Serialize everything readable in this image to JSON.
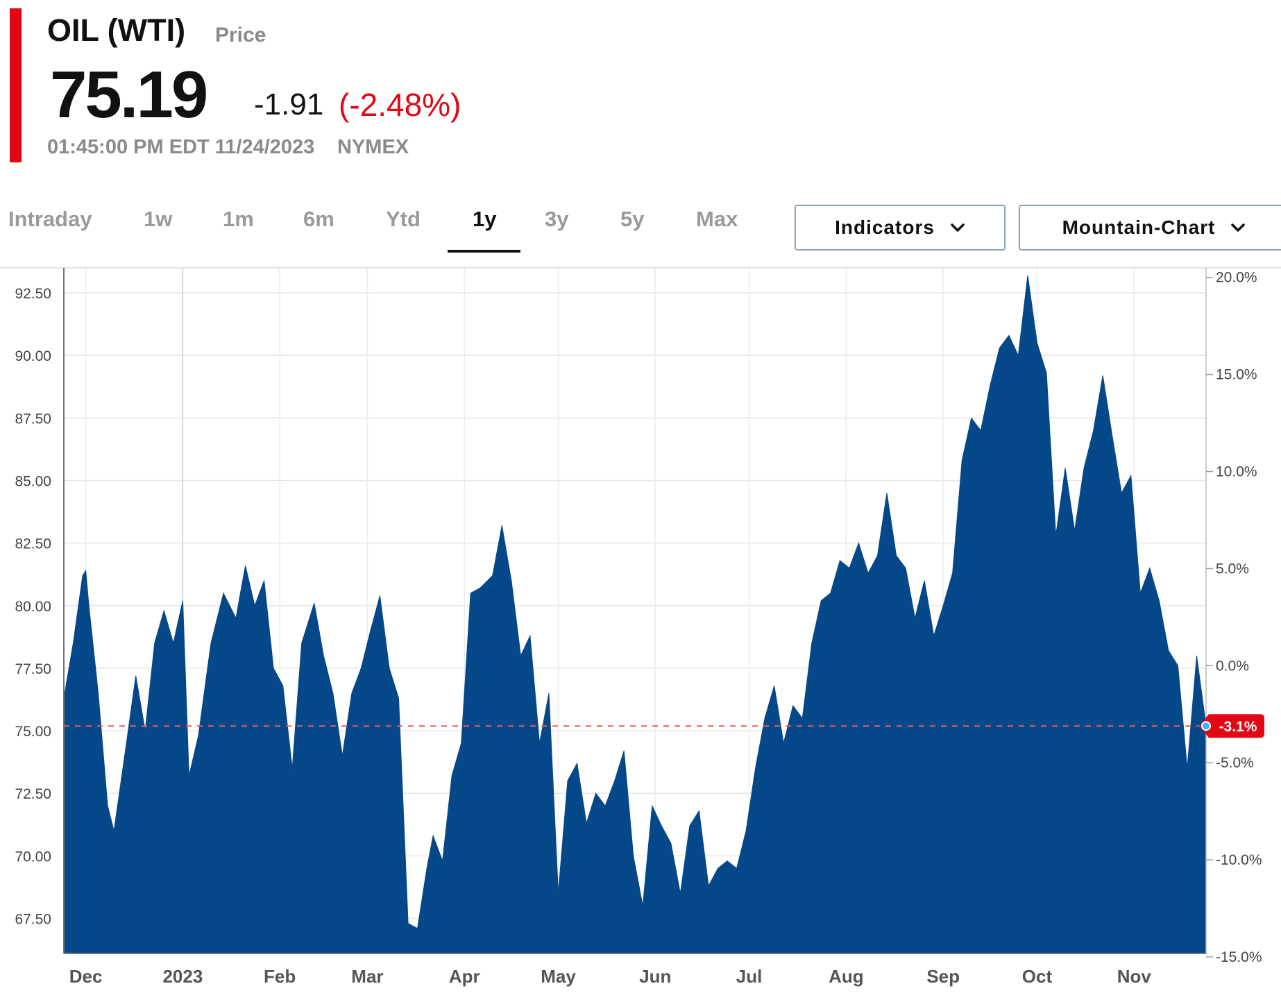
{
  "quote": {
    "title": "OIL (WTI)",
    "subtitle": "Price",
    "price": "75.19",
    "change": "-1.91",
    "change_pct": "(-2.48%)",
    "timestamp": "01:45:00 PM EDT 11/24/2023",
    "exchange": "NYMEX"
  },
  "tabs": [
    {
      "label": "Intraday",
      "active": false
    },
    {
      "label": "1w",
      "active": false
    },
    {
      "label": "1m",
      "active": false
    },
    {
      "label": "6m",
      "active": false
    },
    {
      "label": "Ytd",
      "active": false
    },
    {
      "label": "1y",
      "active": true
    },
    {
      "label": "3y",
      "active": false
    },
    {
      "label": "5y",
      "active": false
    },
    {
      "label": "Max",
      "active": false
    }
  ],
  "dropdowns": {
    "indicators_label": "Indicators",
    "chart_type_label": "Mountain-Chart",
    "chevron_icon": "chevron-down-icon"
  },
  "colors": {
    "accent": "#e30613",
    "area_fill": "#054889",
    "negative": "#e30613",
    "reference_line": "#e85c5c"
  },
  "chart_data": {
    "type": "area",
    "title": "",
    "xlabel": "",
    "ylabel": "",
    "ylim": [
      66.1,
      93.5
    ],
    "y_ticks": [
      "67.50",
      "70.00",
      "72.50",
      "75.00",
      "77.50",
      "80.00",
      "82.50",
      "85.00",
      "87.50",
      "90.00",
      "92.50"
    ],
    "y_tick_values": [
      67.5,
      70,
      72.5,
      75,
      77.5,
      80,
      82.5,
      85,
      87.5,
      90,
      92.5
    ],
    "y2_ticks": [
      "20.0%",
      "15.0%",
      "10.0%",
      "5.0%",
      "0.0%",
      "-5.0%",
      "-10.0%",
      "-15.0%"
    ],
    "y2_tick_values": [
      20,
      15,
      10,
      5,
      0,
      -5,
      -10,
      -15
    ],
    "y2_baseline": 77.6,
    "x_ticks": [
      "Dec",
      "2023",
      "Feb",
      "Mar",
      "Apr",
      "May",
      "Jun",
      "Jul",
      "Aug",
      "Sep",
      "Oct",
      "Nov"
    ],
    "x_tick_dates": [
      "2022-12-01",
      "2023-01-01",
      "2023-02-01",
      "2023-03-01",
      "2023-04-01",
      "2023-05-01",
      "2023-06-01",
      "2023-07-01",
      "2023-08-01",
      "2023-09-01",
      "2023-10-01",
      "2023-11-01"
    ],
    "x_range": [
      "2022-11-24",
      "2023-11-24"
    ],
    "reference_value": 75.19,
    "current_badge": "-3.1%",
    "grid": true,
    "series": [
      {
        "x": [
          "2022-11-24",
          "2022-11-27",
          "2022-11-30",
          "2022-12-01",
          "2022-12-02",
          "2022-12-05",
          "2022-12-08",
          "2022-12-10",
          "2022-12-14",
          "2022-12-17",
          "2022-12-20",
          "2022-12-23",
          "2022-12-26",
          "2022-12-29",
          "2023-01-01",
          "2023-01-03",
          "2023-01-06",
          "2023-01-10",
          "2023-01-14",
          "2023-01-18",
          "2023-01-21",
          "2023-01-24",
          "2023-01-27",
          "2023-01-30",
          "2023-02-02",
          "2023-02-05",
          "2023-02-08",
          "2023-02-12",
          "2023-02-15",
          "2023-02-18",
          "2023-02-21",
          "2023-02-24",
          "2023-02-27",
          "2023-03-02",
          "2023-03-05",
          "2023-03-08",
          "2023-03-11",
          "2023-03-14",
          "2023-03-17",
          "2023-03-20",
          "2023-03-22",
          "2023-03-25",
          "2023-03-28",
          "2023-03-31",
          "2023-04-03",
          "2023-04-06",
          "2023-04-10",
          "2023-04-13",
          "2023-04-16",
          "2023-04-19",
          "2023-04-22",
          "2023-04-25",
          "2023-04-28",
          "2023-05-01",
          "2023-05-04",
          "2023-05-07",
          "2023-05-10",
          "2023-05-13",
          "2023-05-16",
          "2023-05-19",
          "2023-05-22",
          "2023-05-25",
          "2023-05-28",
          "2023-05-31",
          "2023-06-03",
          "2023-06-06",
          "2023-06-09",
          "2023-06-12",
          "2023-06-15",
          "2023-06-18",
          "2023-06-21",
          "2023-06-24",
          "2023-06-27",
          "2023-06-30",
          "2023-07-03",
          "2023-07-06",
          "2023-07-09",
          "2023-07-12",
          "2023-07-15",
          "2023-07-18",
          "2023-07-21",
          "2023-07-24",
          "2023-07-27",
          "2023-07-30",
          "2023-08-02",
          "2023-08-05",
          "2023-08-08",
          "2023-08-11",
          "2023-08-14",
          "2023-08-17",
          "2023-08-20",
          "2023-08-23",
          "2023-08-26",
          "2023-08-29",
          "2023-09-01",
          "2023-09-04",
          "2023-09-07",
          "2023-09-10",
          "2023-09-13",
          "2023-09-16",
          "2023-09-19",
          "2023-09-22",
          "2023-09-25",
          "2023-09-28",
          "2023-10-01",
          "2023-10-04",
          "2023-10-07",
          "2023-10-10",
          "2023-10-13",
          "2023-10-16",
          "2023-10-19",
          "2023-10-22",
          "2023-10-25",
          "2023-10-28",
          "2023-10-31",
          "2023-11-03",
          "2023-11-06",
          "2023-11-09",
          "2023-11-12",
          "2023-11-15",
          "2023-11-18",
          "2023-11-21",
          "2023-11-24"
        ],
        "values": [
          76.3,
          78.5,
          81.2,
          81.4,
          80.0,
          76.5,
          72.0,
          71.0,
          74.5,
          77.2,
          75.0,
          78.5,
          79.8,
          78.5,
          80.2,
          73.2,
          74.8,
          78.5,
          80.5,
          79.5,
          81.6,
          80.0,
          81.0,
          77.5,
          76.8,
          73.5,
          78.5,
          80.1,
          78.0,
          76.5,
          74.0,
          76.5,
          77.5,
          79.0,
          80.4,
          77.5,
          76.3,
          67.3,
          67.1,
          69.5,
          70.8,
          69.8,
          73.2,
          74.5,
          80.5,
          80.7,
          81.2,
          83.2,
          81.0,
          78.0,
          78.8,
          74.5,
          76.5,
          68.5,
          73.0,
          73.7,
          71.3,
          72.5,
          72.0,
          73.0,
          74.2,
          70.0,
          68.0,
          72.0,
          71.2,
          70.5,
          68.5,
          71.2,
          71.8,
          68.8,
          69.5,
          69.8,
          69.5,
          71.0,
          73.5,
          75.5,
          76.8,
          74.5,
          76.0,
          75.5,
          78.5,
          80.2,
          80.5,
          81.8,
          81.5,
          82.5,
          81.3,
          82.0,
          84.5,
          82.0,
          81.5,
          79.5,
          81.0,
          78.8,
          80.0,
          81.3,
          85.8,
          87.5,
          87.0,
          88.8,
          90.3,
          90.8,
          90.0,
          93.2,
          90.5,
          89.3,
          82.8,
          85.5,
          83.0,
          85.5,
          87.0,
          89.2,
          86.8,
          84.5,
          85.2,
          80.5,
          81.5,
          80.2,
          78.2,
          77.6,
          73.5,
          78.0,
          75.2
        ]
      }
    ]
  }
}
